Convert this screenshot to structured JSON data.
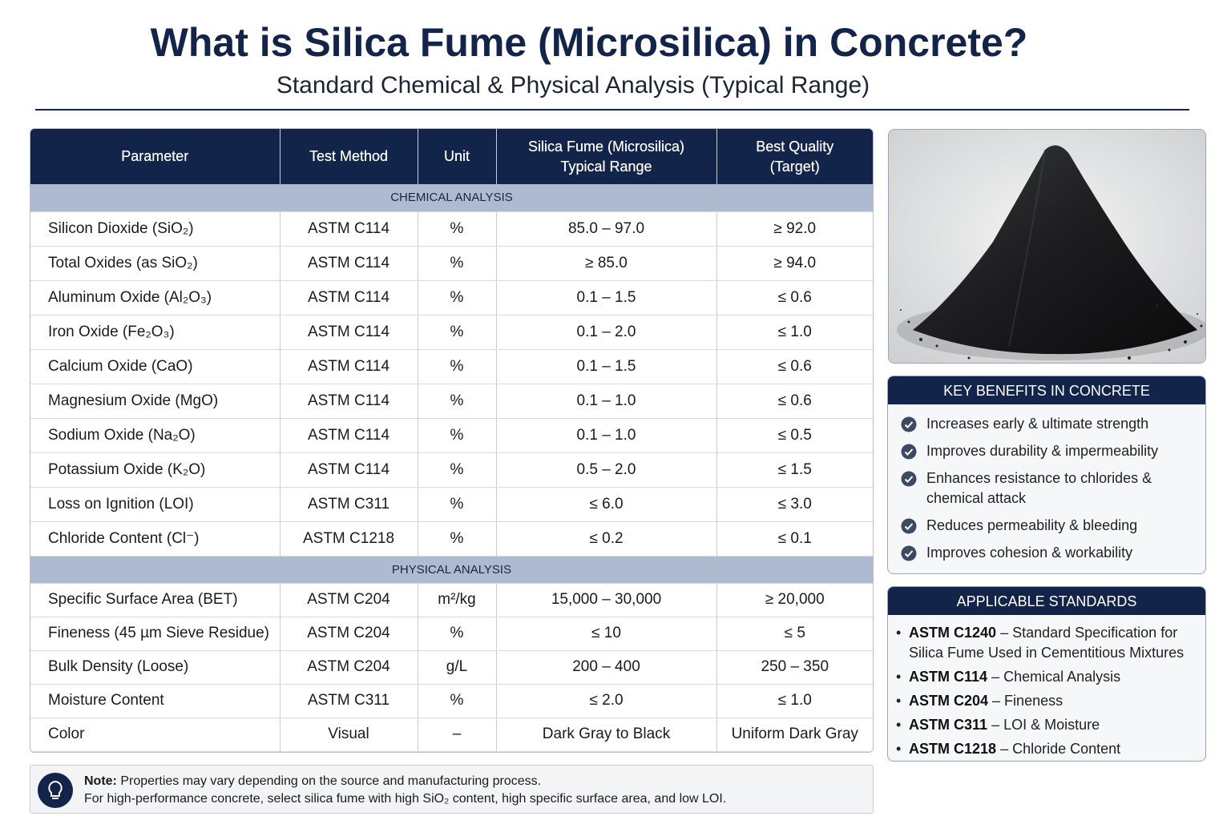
{
  "header": {
    "title": "What is Silica Fume (Microsilica) in Concrete?",
    "subtitle": "Standard Chemical & Physical Analysis (Typical Range)"
  },
  "table": {
    "columns": [
      "Parameter",
      "Test Method",
      "Unit",
      "Silica Fume (Microsilica) Typical Range",
      "Best Quality (Target)"
    ],
    "sections": [
      {
        "title": "CHEMICAL ANALYSIS",
        "rows": [
          [
            "Silicon Dioxide (SiO₂)",
            "ASTM C114",
            "%",
            "85.0 – 97.0",
            "≥ 92.0"
          ],
          [
            "Total Oxides (as SiO₂)",
            "ASTM C114",
            "%",
            "≥ 85.0",
            "≥ 94.0"
          ],
          [
            "Aluminum Oxide (Al₂O₃)",
            "ASTM C114",
            "%",
            "0.1 – 1.5",
            "≤ 0.6"
          ],
          [
            "Iron Oxide (Fe₂O₃)",
            "ASTM C114",
            "%",
            "0.1 – 2.0",
            "≤ 1.0"
          ],
          [
            "Calcium Oxide (CaO)",
            "ASTM C114",
            "%",
            "0.1 – 1.5",
            "≤ 0.6"
          ],
          [
            "Magnesium Oxide (MgO)",
            "ASTM C114",
            "%",
            "0.1 – 1.0",
            "≤ 0.6"
          ],
          [
            "Sodium Oxide (Na₂O)",
            "ASTM C114",
            "%",
            "0.1 – 1.0",
            "≤ 0.5"
          ],
          [
            "Potassium Oxide (K₂O)",
            "ASTM C114",
            "%",
            "0.5 – 2.0",
            "≤ 1.5"
          ],
          [
            "Loss on Ignition (LOI)",
            "ASTM C311",
            "%",
            "≤ 6.0",
            "≤ 3.0"
          ],
          [
            "Chloride Content (Cl⁻)",
            "ASTM C1218",
            "%",
            "≤ 0.2",
            "≤ 0.1"
          ]
        ]
      },
      {
        "title": "PHYSICAL ANALYSIS",
        "rows": [
          [
            "Specific Surface Area (BET)",
            "ASTM C204",
            "m²/kg",
            "15,000 – 30,000",
            "≥ 20,000"
          ],
          [
            "Fineness (45 µm Sieve Residue)",
            "ASTM C204",
            "%",
            "≤ 10",
            "≤ 5"
          ],
          [
            "Bulk Density (Loose)",
            "ASTM C204",
            "g/L",
            "200 – 400",
            "250 – 350"
          ],
          [
            "Moisture Content",
            "ASTM C311",
            "%",
            "≤ 2.0",
            "≤ 1.0"
          ],
          [
            "Color",
            "Visual",
            "–",
            "Dark Gray to Black",
            "Uniform Dark Gray"
          ]
        ]
      }
    ]
  },
  "key_benefits": {
    "title": "KEY BENEFITS IN CONCRETE",
    "items": [
      "Increases early & ultimate strength",
      "Improves durability & impermeability",
      "Enhances resistance to chlorides & chemical attack",
      "Reduces permeability & bleeding",
      "Improves cohesion & workability"
    ]
  },
  "standards": {
    "title": "APPLICABLE STANDARDS",
    "items": [
      {
        "code": "ASTM C1240",
        "description": "– Standard Specification for Silica Fume Used in Cementitious Mixtures"
      },
      {
        "code": "ASTM C114",
        "description": "– Chemical Analysis"
      },
      {
        "code": "ASTM C204",
        "description": "– Fineness"
      },
      {
        "code": "ASTM C311",
        "description": "– LOI & Moisture"
      },
      {
        "code": "ASTM C1218",
        "description": "– Chloride Content"
      }
    ]
  },
  "note": {
    "label": "Note:",
    "line1": "Properties may vary depending on the source and manufacturing process.",
    "line2": "For high-performance concrete, select silica fume with high SiO₂ content, high specific surface area, and low LOI."
  }
}
